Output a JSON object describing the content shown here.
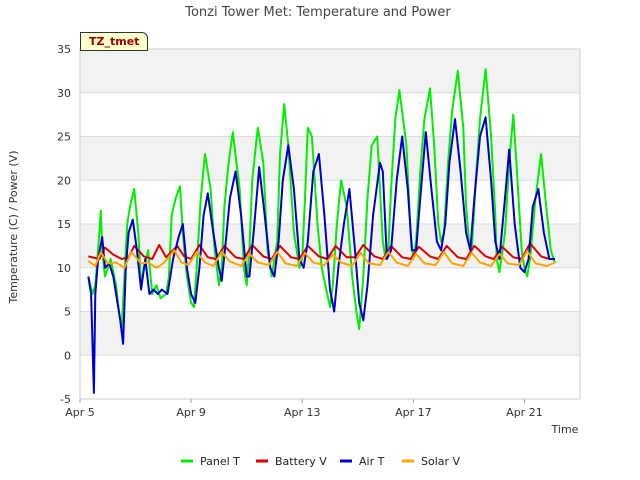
{
  "chart_data": {
    "type": "line",
    "title": "Tonzi Tower Met: Temperature and Power",
    "xlabel": "Time",
    "ylabel": "Temperature (C) / Power (V)",
    "tag": "TZ_tmet",
    "xlim": [
      0,
      18
    ],
    "ylim": [
      -5,
      35
    ],
    "x_ticks": [
      {
        "value": 0,
        "label": "Apr 5"
      },
      {
        "value": 4,
        "label": "Apr 9"
      },
      {
        "value": 8,
        "label": "Apr 13"
      },
      {
        "value": 12,
        "label": "Apr 17"
      },
      {
        "value": 16,
        "label": "Apr 21"
      }
    ],
    "y_ticks": [
      -5,
      0,
      5,
      10,
      15,
      20,
      25,
      30,
      35
    ],
    "series": [
      {
        "name": "Panel T",
        "color": "#00ee00",
        "x": [
          0.3,
          0.45,
          0.55,
          0.65,
          0.75,
          0.8,
          0.9,
          1.1,
          1.3,
          1.4,
          1.5,
          1.6,
          1.7,
          1.8,
          1.95,
          2.1,
          2.2,
          2.3,
          2.45,
          2.6,
          2.75,
          2.9,
          3.1,
          3.2,
          3.3,
          3.45,
          3.6,
          3.7,
          3.85,
          4.0,
          4.1,
          4.2,
          4.35,
          4.5,
          4.7,
          4.85,
          5.0,
          5.1,
          5.2,
          5.35,
          5.5,
          5.75,
          5.9,
          6.0,
          6.1,
          6.2,
          6.4,
          6.6,
          6.75,
          6.9,
          7.1,
          7.2,
          7.35,
          7.5,
          7.7,
          7.9,
          8.0,
          8.1,
          8.2,
          8.35,
          8.55,
          8.7,
          8.9,
          9.0,
          9.1,
          9.25,
          9.4,
          9.6,
          9.8,
          9.95,
          10.05,
          10.2,
          10.35,
          10.5,
          10.7,
          10.9,
          11.0,
          11.1,
          11.2,
          11.35,
          11.5,
          11.75,
          11.9,
          12.0,
          12.1,
          12.25,
          12.4,
          12.6,
          12.75,
          12.9,
          13.0,
          13.1,
          13.25,
          13.4,
          13.6,
          13.8,
          13.9,
          14.0,
          14.1,
          14.25,
          14.4,
          14.6,
          14.8,
          14.95,
          15.0,
          15.1,
          15.3,
          15.45,
          15.6,
          15.75,
          15.9,
          16.0,
          16.1,
          16.2,
          16.4,
          16.6,
          16.75,
          16.95,
          17.1
        ],
        "values": [
          9,
          7,
          8,
          12,
          16.5,
          12,
          9,
          11,
          8,
          5,
          3,
          9,
          15,
          17,
          19,
          14,
          8,
          10,
          12,
          7,
          8,
          6.5,
          7,
          9,
          16,
          18,
          19.3,
          14,
          9,
          6,
          5.5,
          10,
          18,
          23,
          19,
          12,
          8,
          10,
          17,
          22,
          25.5,
          19,
          10,
          8,
          12,
          20,
          26,
          22,
          12,
          9,
          13,
          23,
          28.7,
          24,
          14,
          10,
          11,
          18,
          26,
          25,
          15,
          10,
          7,
          5.5,
          8,
          15,
          20,
          17,
          9,
          5,
          3,
          9,
          18,
          24,
          25,
          13,
          11,
          12,
          19,
          27,
          30.3,
          24,
          14,
          11,
          13,
          21,
          27,
          30.5,
          24,
          15,
          13,
          14,
          22,
          28,
          32.5,
          26,
          17,
          13,
          12,
          20,
          27,
          32.7,
          25,
          16,
          11,
          9.5,
          14,
          22,
          27.5,
          20,
          12,
          10,
          9,
          11,
          18,
          23,
          18,
          12,
          10.5
        ]
      },
      {
        "name": "Battery V",
        "color": "#dd0000",
        "x": [
          0.3,
          0.7,
          0.9,
          1.2,
          1.5,
          1.75,
          1.95,
          2.3,
          2.6,
          2.85,
          3.1,
          3.5,
          3.75,
          4.0,
          4.3,
          4.6,
          4.9,
          5.2,
          5.6,
          5.9,
          6.2,
          6.6,
          6.9,
          7.2,
          7.6,
          7.9,
          8.2,
          8.6,
          8.9,
          9.2,
          9.6,
          9.9,
          10.2,
          10.6,
          10.9,
          11.2,
          11.6,
          11.9,
          12.2,
          12.6,
          12.9,
          13.2,
          13.6,
          13.9,
          14.2,
          14.6,
          14.9,
          15.2,
          15.6,
          15.9,
          16.2,
          16.6,
          16.9,
          17.1
        ],
        "values": [
          11.3,
          11,
          12.3,
          11.5,
          11,
          11.2,
          12.5,
          11.3,
          11,
          12.6,
          11.2,
          12.5,
          11.3,
          11,
          12.6,
          11.2,
          11,
          12.5,
          11.2,
          11,
          12.6,
          11.3,
          11,
          12.5,
          11.2,
          11,
          12.5,
          11.3,
          11,
          12.5,
          11.2,
          11.2,
          12.6,
          11.3,
          11,
          12.5,
          11.2,
          11,
          12.4,
          11.3,
          11,
          12.5,
          11.2,
          11,
          12.5,
          11.3,
          11,
          12.4,
          11.2,
          11,
          12.8,
          11.3,
          11,
          11
        ]
      },
      {
        "name": "Air T",
        "color": "#0000cc",
        "x": [
          0.3,
          0.4,
          0.5,
          0.55,
          0.65,
          0.8,
          0.9,
          1.05,
          1.2,
          1.35,
          1.45,
          1.55,
          1.65,
          1.75,
          1.9,
          2.05,
          2.2,
          2.35,
          2.5,
          2.65,
          2.8,
          2.95,
          3.15,
          3.35,
          3.55,
          3.7,
          3.85,
          4.0,
          4.15,
          4.3,
          4.45,
          4.6,
          4.8,
          5.0,
          5.1,
          5.25,
          5.4,
          5.6,
          5.8,
          6.0,
          6.1,
          6.25,
          6.45,
          6.65,
          6.85,
          7.0,
          7.15,
          7.3,
          7.5,
          7.7,
          7.9,
          8.05,
          8.2,
          8.4,
          8.6,
          8.8,
          9.0,
          9.15,
          9.3,
          9.5,
          9.7,
          9.9,
          10.05,
          10.2,
          10.35,
          10.55,
          10.8,
          10.9,
          11.05,
          11.2,
          11.4,
          11.6,
          11.8,
          11.95,
          12.1,
          12.25,
          12.45,
          12.65,
          12.85,
          13.0,
          13.15,
          13.3,
          13.5,
          13.7,
          13.9,
          14.05,
          14.2,
          14.4,
          14.6,
          14.8,
          14.95,
          15.1,
          15.3,
          15.45,
          15.65,
          15.85,
          16.0,
          16.15,
          16.3,
          16.5,
          16.7,
          16.9,
          17.1
        ],
        "values": [
          9,
          7,
          -4.3,
          7,
          11,
          13.5,
          10,
          10.5,
          9,
          6,
          4,
          1.3,
          10,
          14,
          15.5,
          12,
          7.5,
          11,
          7,
          7.5,
          7,
          7.5,
          7,
          11,
          13.5,
          15,
          10,
          7,
          6,
          10,
          16,
          18.5,
          14,
          10,
          8.5,
          13,
          18,
          21,
          16,
          9,
          9,
          14,
          21.5,
          16,
          10,
          9,
          13,
          20,
          24,
          19,
          11,
          10,
          13,
          21,
          23,
          16,
          7.5,
          5,
          10,
          15,
          19,
          12,
          6,
          4,
          8,
          16,
          22,
          21,
          11,
          12,
          20,
          25,
          19,
          12,
          12,
          18,
          25.5,
          19,
          13,
          12,
          15,
          22,
          27,
          21,
          14,
          12,
          18,
          25,
          27.2,
          20,
          13,
          11,
          18,
          23.5,
          15,
          10,
          9.5,
          11,
          17,
          19,
          14,
          11,
          11
        ]
      },
      {
        "name": "Solar V",
        "color": "#ffa500",
        "x": [
          0.3,
          0.55,
          0.75,
          1.0,
          1.3,
          1.6,
          1.85,
          2.2,
          2.45,
          2.75,
          3.0,
          3.4,
          3.65,
          3.9,
          4.2,
          4.5,
          4.8,
          5.1,
          5.4,
          5.8,
          6.1,
          6.4,
          6.8,
          7.1,
          7.4,
          7.8,
          8.1,
          8.4,
          8.8,
          9.1,
          9.4,
          9.8,
          10.1,
          10.4,
          10.8,
          11.1,
          11.4,
          11.8,
          12.1,
          12.4,
          12.8,
          13.1,
          13.4,
          13.8,
          14.1,
          14.4,
          14.8,
          15.1,
          15.4,
          15.8,
          16.1,
          16.4,
          16.8,
          17.1
        ],
        "values": [
          10.8,
          10.2,
          11.8,
          10.5,
          10.6,
          10,
          11.8,
          10.5,
          10.6,
          10,
          10.5,
          12,
          10.6,
          10.3,
          11.8,
          10.6,
          10.2,
          11.8,
          10.7,
          10.2,
          11.6,
          10.6,
          10.3,
          11.8,
          10.5,
          10.2,
          11.7,
          10.6,
          10.3,
          11.5,
          10.6,
          10.2,
          11.7,
          10.5,
          10.3,
          11.8,
          10.6,
          10.2,
          11.6,
          10.5,
          10.3,
          11.8,
          10.5,
          10.2,
          11.7,
          10.6,
          10.2,
          11.6,
          10.5,
          10.3,
          11.9,
          10.5,
          10.2,
          10.6
        ]
      }
    ]
  }
}
